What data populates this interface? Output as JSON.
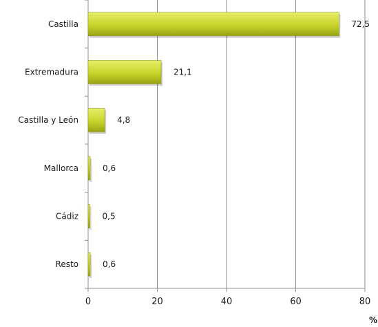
{
  "chart_data": {
    "type": "bar",
    "orientation": "horizontal",
    "categories": [
      "Castilla",
      "Extremadura",
      "Castilla y León",
      "Mallorca",
      "Cádiz",
      "Resto"
    ],
    "values": [
      72.5,
      21.1,
      4.8,
      0.6,
      0.5,
      0.6
    ],
    "value_labels": [
      "72,5",
      "21,1",
      "4,8",
      "0,6",
      "0,5",
      "0,6"
    ],
    "xlim": [
      0,
      80
    ],
    "x_ticks": [
      0,
      20,
      40,
      60,
      80
    ],
    "x_unit": "%",
    "grid": "vertical",
    "bar_color": "#c8d42a"
  }
}
